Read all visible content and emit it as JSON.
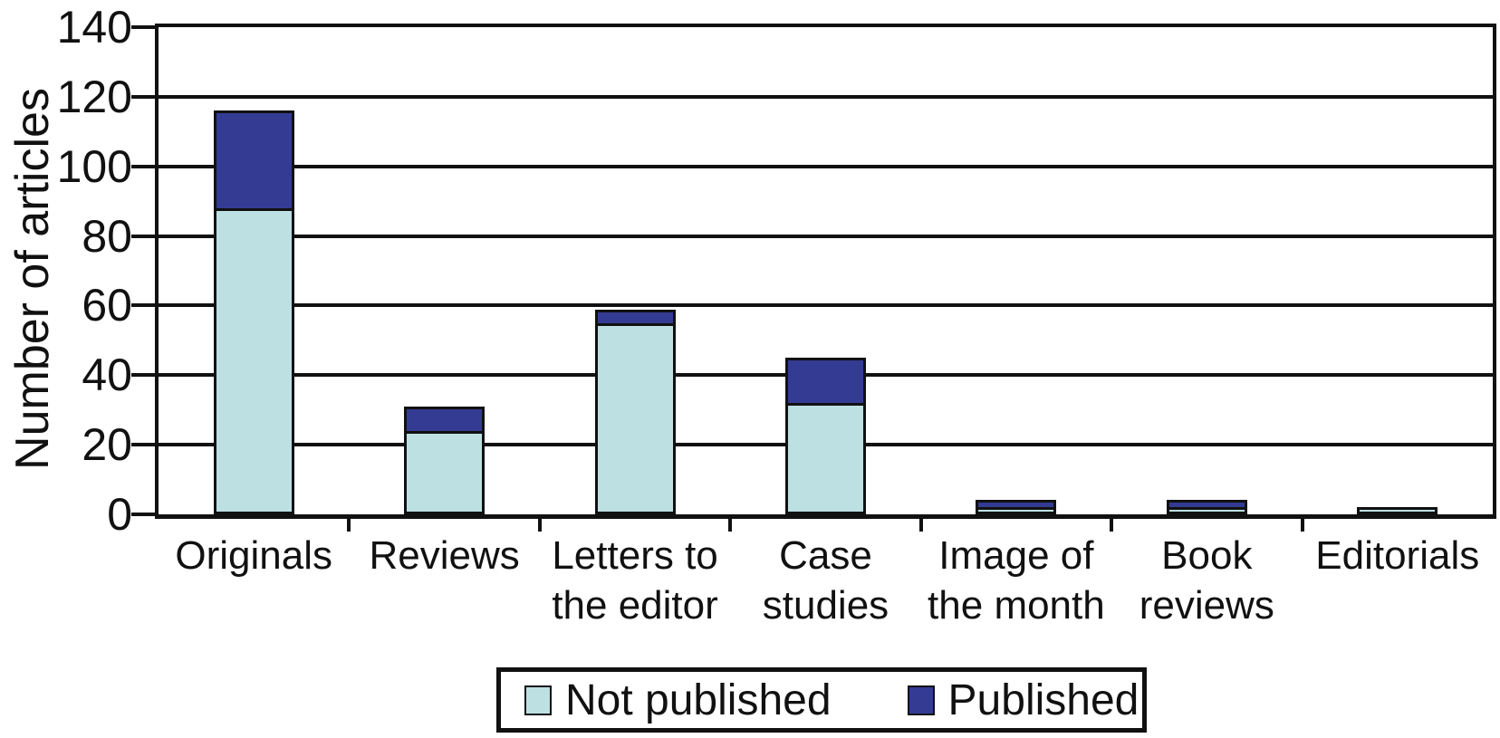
{
  "chart_data": {
    "type": "bar",
    "stacked": true,
    "title": "",
    "xlabel": "",
    "ylabel": "Number of articles",
    "ylim": [
      0,
      140
    ],
    "yticks": [
      0,
      20,
      40,
      60,
      80,
      100,
      120,
      140
    ],
    "grid": true,
    "legend_position": "bottom",
    "categories": [
      "Originals",
      "Reviews",
      "Letters to the editor",
      "Case studies",
      "Image of the month",
      "Book reviews",
      "Editorials"
    ],
    "category_label_lines": [
      [
        "Originals"
      ],
      [
        "Reviews"
      ],
      [
        "Letters to",
        "the editor"
      ],
      [
        "Case",
        "studies"
      ],
      [
        "Image of",
        "the month"
      ],
      [
        "Book",
        "reviews"
      ],
      [
        "Editorials"
      ]
    ],
    "series": [
      {
        "name": "Not published",
        "color": "#bde0e3",
        "values": [
          88,
          24,
          55,
          32,
          1,
          1,
          1
        ]
      },
      {
        "name": "Published",
        "color": "#343b93",
        "values": [
          28,
          7,
          4,
          13,
          2,
          2,
          0
        ]
      }
    ],
    "totals": [
      116,
      31,
      59,
      45,
      3,
      3,
      1
    ]
  },
  "colors": {
    "axis": "#111111",
    "background": "#ffffff",
    "not_published": "#bde0e3",
    "published": "#343b93"
  }
}
